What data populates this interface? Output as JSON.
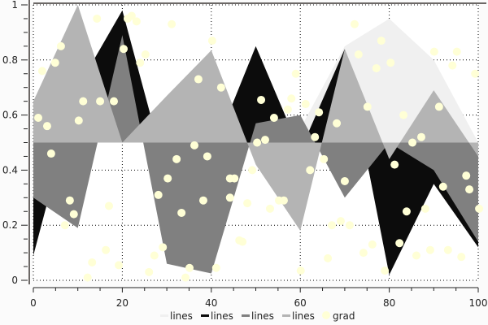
{
  "chart_data": {
    "type": "area",
    "title": "",
    "xlabel": "",
    "ylabel": "",
    "xlim": [
      0,
      100
    ],
    "ylim": [
      0,
      1
    ],
    "baseline": 0.5,
    "grid": true,
    "legend_placement": "bottom",
    "x_ticks": [
      "0",
      "20",
      "40",
      "60",
      "80",
      "100"
    ],
    "y_ticks": [
      "0",
      "0.2",
      "0.4",
      "0.6",
      "0.8",
      "1"
    ],
    "x": [
      0,
      10,
      20,
      30,
      40,
      50,
      60,
      70,
      80,
      90,
      100
    ],
    "series": [
      {
        "name": "lines",
        "color": "#f0f0f0",
        "values": [
          0.6,
          0.6,
          0.6,
          0.6,
          0.6,
          0.55,
          0.55,
          0.85,
          0.95,
          0.8,
          0.5
        ]
      },
      {
        "name": "lines",
        "color": "#0c0c0c",
        "values": [
          0.09,
          0.7,
          0.98,
          0.38,
          0.45,
          0.85,
          0.47,
          0.84,
          0.02,
          0.35,
          0.12
        ]
      },
      {
        "name": "lines",
        "color": "#808080",
        "values": [
          0.3,
          0.19,
          0.89,
          0.06,
          0.025,
          0.57,
          0.6,
          0.3,
          0.5,
          0.4,
          0.14
        ]
      },
      {
        "name": "lines",
        "color": "#b4b4b4",
        "values": [
          0.65,
          1.0,
          0.5,
          0.67,
          0.835,
          0.42,
          0.18,
          0.84,
          0.44,
          0.69,
          0.45
        ]
      }
    ],
    "scatter": {
      "name": "grad",
      "color": "#ffffd6",
      "points": [
        [
          1.1,
          0.59
        ],
        [
          3.1,
          0.56
        ],
        [
          4.0,
          0.46
        ],
        [
          2.0,
          0.76
        ],
        [
          4.9,
          0.79
        ],
        [
          6.2,
          0.85
        ],
        [
          8.2,
          0.29
        ],
        [
          9.1,
          0.24
        ],
        [
          7.1,
          0.2
        ],
        [
          17.0,
          0.27
        ],
        [
          16.3,
          0.11
        ],
        [
          13.2,
          0.065
        ],
        [
          12.2,
          0.01
        ],
        [
          19.2,
          0.055
        ],
        [
          10.2,
          0.58
        ],
        [
          11.2,
          0.65
        ],
        [
          15.0,
          0.65
        ],
        [
          18.1,
          0.65
        ],
        [
          14.3,
          0.95
        ],
        [
          20.3,
          0.84
        ],
        [
          21.2,
          0.95
        ],
        [
          22.1,
          0.96
        ],
        [
          23.2,
          0.94
        ],
        [
          24.0,
          0.79
        ],
        [
          25.2,
          0.82
        ],
        [
          31.1,
          0.93
        ],
        [
          37.1,
          0.73
        ],
        [
          40.2,
          0.87
        ],
        [
          42.2,
          0.7
        ],
        [
          36.2,
          0.49
        ],
        [
          32.2,
          0.44
        ],
        [
          39.1,
          0.45
        ],
        [
          26.0,
          0.03
        ],
        [
          27.2,
          0.09
        ],
        [
          29.1,
          0.12
        ],
        [
          28.1,
          0.31
        ],
        [
          30.2,
          0.37
        ],
        [
          33.3,
          0.245
        ],
        [
          34.2,
          0.01
        ],
        [
          35.1,
          0.045
        ],
        [
          38.2,
          0.29
        ],
        [
          41.1,
          0.045
        ],
        [
          44.2,
          0.37
        ],
        [
          45.2,
          0.37
        ],
        [
          44.2,
          0.3
        ],
        [
          46.3,
          0.145
        ],
        [
          47.0,
          0.14
        ],
        [
          72.2,
          0.93
        ],
        [
          73.1,
          0.82
        ],
        [
          78.2,
          0.87
        ],
        [
          77.1,
          0.77
        ],
        [
          80.3,
          0.79
        ],
        [
          90.1,
          0.83
        ],
        [
          95.2,
          0.83
        ],
        [
          94.2,
          0.78
        ],
        [
          99.3,
          0.75
        ],
        [
          75.1,
          0.63
        ],
        [
          83.2,
          0.6
        ],
        [
          91.2,
          0.63
        ],
        [
          87.2,
          0.52
        ],
        [
          85.2,
          0.5
        ],
        [
          68.2,
          0.57
        ],
        [
          64.2,
          0.61
        ],
        [
          63.3,
          0.52
        ],
        [
          58.0,
          0.66
        ],
        [
          57.2,
          0.62
        ],
        [
          54.1,
          0.59
        ],
        [
          51.2,
          0.655
        ],
        [
          52.1,
          0.51
        ],
        [
          50.3,
          0.5
        ],
        [
          59.0,
          0.75
        ],
        [
          61.2,
          0.64
        ],
        [
          65.3,
          0.44
        ],
        [
          49.2,
          0.4
        ],
        [
          62.2,
          0.4
        ],
        [
          70.0,
          0.36
        ],
        [
          81.2,
          0.42
        ],
        [
          48.1,
          0.28
        ],
        [
          53.2,
          0.26
        ],
        [
          55.2,
          0.29
        ],
        [
          56.3,
          0.29
        ],
        [
          67.1,
          0.2
        ],
        [
          69.1,
          0.215
        ],
        [
          71.1,
          0.2
        ],
        [
          66.2,
          0.08
        ],
        [
          60.1,
          0.035
        ],
        [
          74.2,
          0.1
        ],
        [
          76.2,
          0.13
        ],
        [
          79.0,
          0.035
        ],
        [
          82.3,
          0.135
        ],
        [
          83.9,
          0.25
        ],
        [
          88.1,
          0.26
        ],
        [
          86.1,
          0.09
        ],
        [
          89.2,
          0.11
        ],
        [
          93.2,
          0.11
        ],
        [
          96.2,
          0.085
        ],
        [
          92.1,
          0.34
        ],
        [
          97.3,
          0.38
        ],
        [
          98.0,
          0.33
        ],
        [
          100.2,
          0.26
        ]
      ]
    }
  }
}
